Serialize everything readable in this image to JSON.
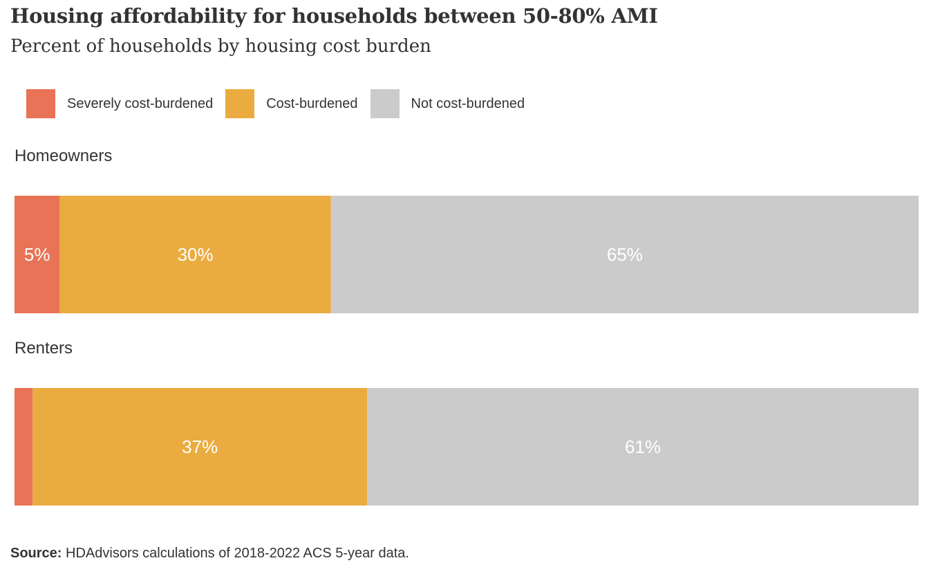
{
  "chart_data": {
    "type": "bar",
    "orientation": "horizontal",
    "stacked": true,
    "title": "Housing affordability for households between 50-80% AMI",
    "subtitle": "Percent of households by housing cost burden",
    "categories": [
      "Homeowners",
      "Renters"
    ],
    "series": [
      {
        "name": "Severely cost-burdened",
        "color": "#E87356",
        "values": [
          5,
          2
        ],
        "labels": [
          "5%",
          ""
        ]
      },
      {
        "name": "Cost-burdened",
        "color": "#EAAC40",
        "values": [
          30,
          37
        ],
        "labels": [
          "30%",
          "37%"
        ]
      },
      {
        "name": "Not cost-burdened",
        "color": "#CBCBCB",
        "values": [
          65,
          61
        ],
        "labels": [
          "65%",
          "61%"
        ]
      }
    ],
    "xlim": [
      0,
      100
    ],
    "grid": false,
    "legend_position": "top-left"
  },
  "source": {
    "prefix": "Source:",
    "text": " HDAdvisors  calculations of 2018-2022  ACS 5-year  data."
  }
}
